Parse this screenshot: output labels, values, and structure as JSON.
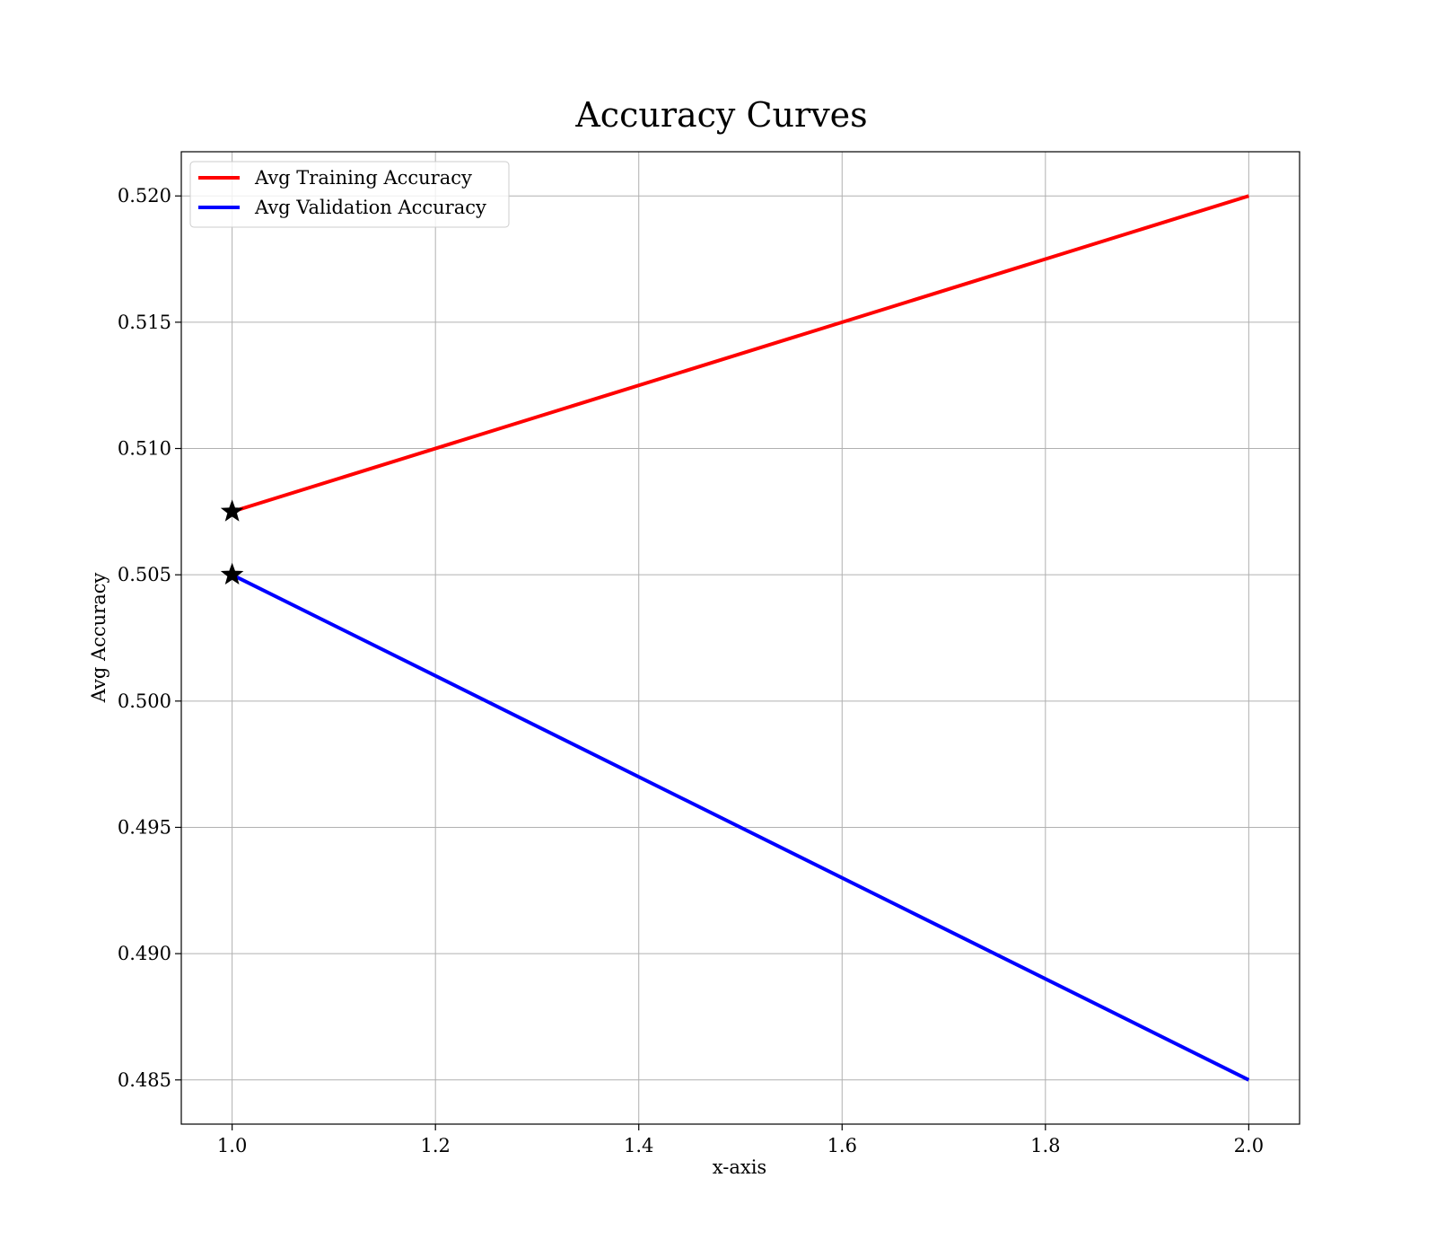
{
  "chart_data": {
    "type": "line",
    "title": "Accuracy Curves",
    "xlabel": "x-axis",
    "ylabel": "Avg Accuracy",
    "xlim": [
      0.95,
      2.05
    ],
    "ylim": [
      0.48325,
      0.52175
    ],
    "xticks": [
      1.0,
      1.2,
      1.4,
      1.6,
      1.8,
      2.0
    ],
    "xtick_labels": [
      "1.0",
      "1.2",
      "1.4",
      "1.6",
      "1.8",
      "2.0"
    ],
    "yticks": [
      0.485,
      0.49,
      0.495,
      0.5,
      0.505,
      0.51,
      0.515,
      0.52
    ],
    "ytick_labels": [
      "0.485",
      "0.490",
      "0.495",
      "0.500",
      "0.505",
      "0.510",
      "0.515",
      "0.520"
    ],
    "grid": true,
    "legend_position": "upper-left",
    "series": [
      {
        "name": "Avg Training Accuracy",
        "color": "#ff0000",
        "x": [
          1.0,
          2.0
        ],
        "y": [
          0.5075,
          0.52
        ]
      },
      {
        "name": "Avg Validation Accuracy",
        "color": "#0000ff",
        "x": [
          1.0,
          2.0
        ],
        "y": [
          0.505,
          0.485
        ]
      }
    ],
    "markers": [
      {
        "x": 1.0,
        "y": 0.5075,
        "symbol": "star",
        "color": "#000000"
      },
      {
        "x": 1.0,
        "y": 0.505,
        "symbol": "star",
        "color": "#000000"
      }
    ]
  }
}
